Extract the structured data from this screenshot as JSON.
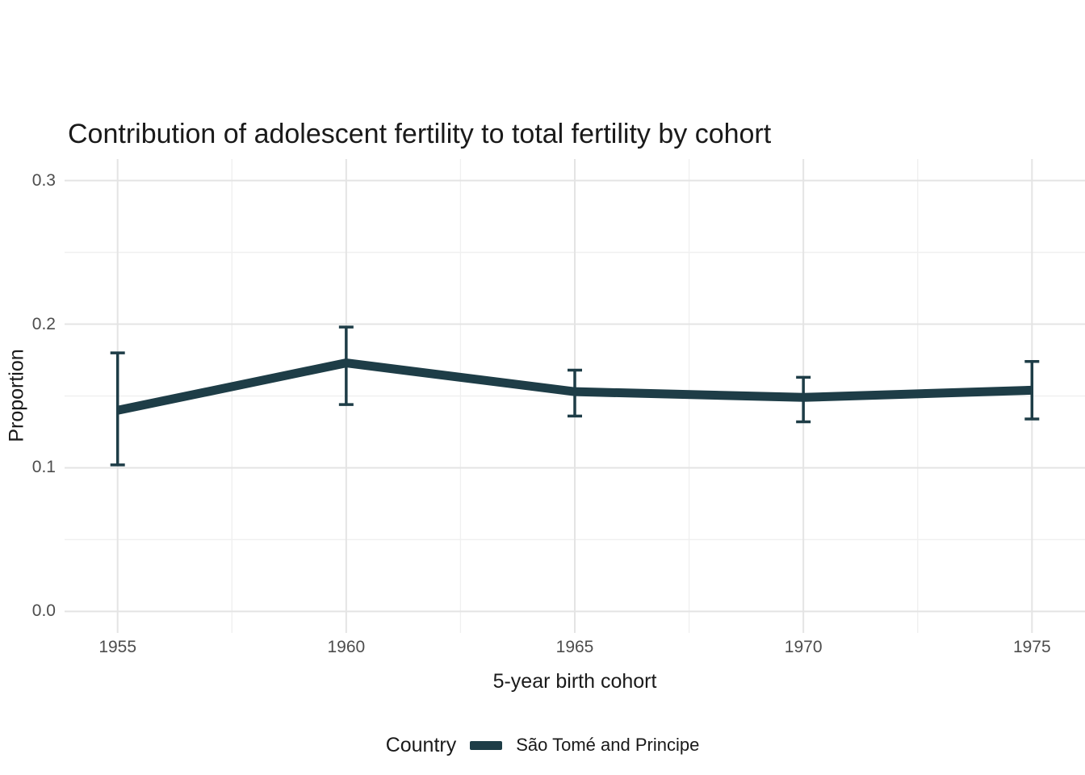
{
  "title": "Contribution of adolescent fertility to total fertility by cohort",
  "chart_data": {
    "type": "line",
    "title": "Contribution of adolescent fertility to total fertility by cohort",
    "xlabel": "5-year birth cohort",
    "ylabel": "Proportion",
    "x": [
      1955,
      1960,
      1965,
      1970,
      1975
    ],
    "x_tick_labels": [
      "1955",
      "1960",
      "1965",
      "1970",
      "1975"
    ],
    "y_ticks": [
      0.0,
      0.1,
      0.2,
      0.3
    ],
    "y_tick_labels": [
      "0.0",
      "0.1",
      "0.2",
      "0.3"
    ],
    "xlim": [
      1955,
      1975
    ],
    "ylim": [
      0.0,
      0.3
    ],
    "grid": "on",
    "grid_minor": "on",
    "legend_position": "bottom",
    "legend_title": "Country",
    "series": [
      {
        "name": "São Tomé and Principe",
        "color": "#1e3d47",
        "values": [
          0.14,
          0.173,
          0.153,
          0.149,
          0.154
        ],
        "ymin": [
          0.102,
          0.144,
          0.136,
          0.132,
          0.134
        ],
        "ymax": [
          0.18,
          0.198,
          0.168,
          0.163,
          0.174
        ],
        "error_bars": true
      }
    ]
  },
  "colors": {
    "line": "#1e3d47",
    "grid_major": "#e4e4e4",
    "grid_minor": "#f0f0f0",
    "tick_text": "#4d4d4d",
    "text": "#1a1a1a",
    "background": "#ffffff"
  }
}
